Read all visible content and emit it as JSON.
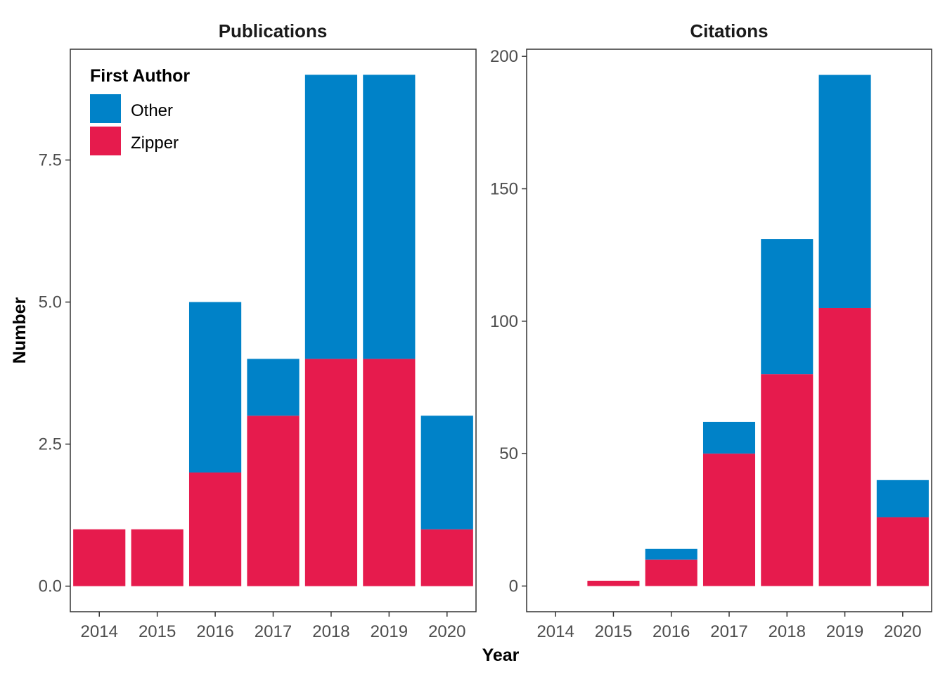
{
  "ylabel": "Number",
  "xlabel": "Year",
  "legend": {
    "title": "First Author",
    "placement": "top-left",
    "entries": [
      {
        "label": "Other",
        "color": "#0082C8"
      },
      {
        "label": "Zipper",
        "color": "#E61B4D"
      }
    ]
  },
  "chart_data": [
    {
      "type": "bar",
      "stacked": true,
      "title": "Publications",
      "categories": [
        "2014",
        "2015",
        "2016",
        "2017",
        "2018",
        "2019",
        "2020"
      ],
      "series": [
        {
          "name": "Zipper",
          "color": "#E61B4D",
          "values": [
            1,
            1,
            2,
            3,
            4,
            4,
            1
          ]
        },
        {
          "name": "Other",
          "color": "#0082C8",
          "values": [
            0,
            0,
            3,
            1,
            5,
            5,
            2
          ]
        }
      ],
      "yticks": [
        0,
        2.5,
        5,
        7.5
      ],
      "ytick_labels": [
        "0.0",
        "2.5",
        "5.0",
        "7.5"
      ],
      "ylim": [
        -0.45,
        9.45
      ],
      "grid": false
    },
    {
      "type": "bar",
      "stacked": true,
      "title": "Citations",
      "categories": [
        "2014",
        "2015",
        "2016",
        "2017",
        "2018",
        "2019",
        "2020"
      ],
      "series": [
        {
          "name": "Zipper",
          "color": "#E61B4D",
          "values": [
            0,
            2,
            10,
            50,
            80,
            105,
            26
          ]
        },
        {
          "name": "Other",
          "color": "#0082C8",
          "values": [
            0,
            0,
            4,
            12,
            51,
            88,
            14
          ]
        }
      ],
      "yticks": [
        0,
        50,
        100,
        150,
        200
      ],
      "ytick_labels": [
        "0",
        "50",
        "100",
        "150",
        "200"
      ],
      "ylim": [
        -9.7,
        202.7
      ],
      "grid": false
    }
  ]
}
